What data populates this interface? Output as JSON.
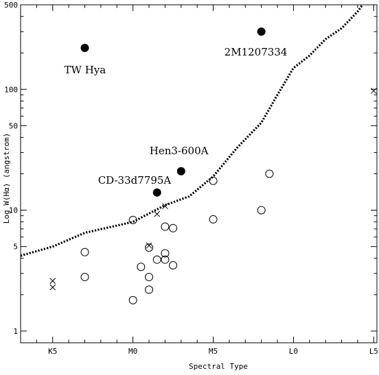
{
  "chart_data": {
    "type": "scatter",
    "title": "",
    "xlabel": "Spectral Type",
    "ylabel": "Log W(Hα) (angstrom)",
    "y_scale": "log",
    "grid": false,
    "legend": "none",
    "xlim": [
      "K3",
      "L5.2"
    ],
    "ylim": [
      0.8,
      500
    ],
    "x_ticks": [
      "K5",
      "M0",
      "M5",
      "L0",
      "L5"
    ],
    "y_ticks": [
      {
        "value": 1,
        "label": "1"
      },
      {
        "value": 5,
        "label": "5"
      },
      {
        "value": 10,
        "label": "10"
      },
      {
        "value": 50,
        "label": "50"
      },
      {
        "value": 100,
        "label": "100"
      },
      {
        "value": 500,
        "label": "500"
      }
    ],
    "series": [
      {
        "marker": "filled-circle",
        "points": [
          {
            "x": "K7",
            "y": 220
          },
          {
            "x": "M8",
            "y": 300
          },
          {
            "x": "M3",
            "y": 21
          },
          {
            "x": "M1.5",
            "y": 14
          }
        ]
      },
      {
        "marker": "open-circle",
        "points": [
          {
            "x": "K7",
            "y": 4.5
          },
          {
            "x": "K7",
            "y": 2.8
          },
          {
            "x": "M0",
            "y": 8.3
          },
          {
            "x": "M0",
            "y": 1.8
          },
          {
            "x": "M0.5",
            "y": 3.4
          },
          {
            "x": "M1",
            "y": 4.9
          },
          {
            "x": "M1",
            "y": 2.8
          },
          {
            "x": "M1",
            "y": 2.2
          },
          {
            "x": "M1.5",
            "y": 3.9
          },
          {
            "x": "M2",
            "y": 7.3
          },
          {
            "x": "M2",
            "y": 4.4
          },
          {
            "x": "M2",
            "y": 3.9
          },
          {
            "x": "M2.5",
            "y": 7.1
          },
          {
            "x": "M2.5",
            "y": 3.5
          },
          {
            "x": "M5",
            "y": 17.5
          },
          {
            "x": "M5",
            "y": 8.4
          },
          {
            "x": "M8",
            "y": 10
          },
          {
            "x": "M8.5",
            "y": 20
          }
        ]
      },
      {
        "marker": "cross",
        "points": [
          {
            "x": "K5",
            "y": 2.6
          },
          {
            "x": "K5",
            "y": 2.3
          },
          {
            "x": "M1",
            "y": 5.1
          },
          {
            "x": "M1.5",
            "y": 9.3
          },
          {
            "x": "M2",
            "y": 10.8
          },
          {
            "x": "L5",
            "y": 97
          }
        ]
      }
    ],
    "threshold_curve": {
      "style": "dotted",
      "points": [
        {
          "x": "K3",
          "y": 4.2
        },
        {
          "x": "K5",
          "y": 5.0
        },
        {
          "x": "K7",
          "y": 6.5
        },
        {
          "x": "M0",
          "y": 8.0
        },
        {
          "x": "M2",
          "y": 11.0
        },
        {
          "x": "M3.5",
          "y": 13.0
        },
        {
          "x": "M5",
          "y": 19.0
        },
        {
          "x": "M6.5",
          "y": 33.0
        },
        {
          "x": "M8",
          "y": 53.0
        },
        {
          "x": "M9",
          "y": 90.0
        },
        {
          "x": "L0",
          "y": 150.0
        },
        {
          "x": "L1",
          "y": 190.0
        },
        {
          "x": "L2",
          "y": 260.0
        },
        {
          "x": "L3",
          "y": 320.0
        },
        {
          "x": "L4",
          "y": 440.0
        },
        {
          "x": "L4.3",
          "y": 500.0
        }
      ]
    },
    "annotations": [
      {
        "text": "TW Hya",
        "x": "K7",
        "y": 220
      },
      {
        "text": "2M1207334",
        "x": "M8",
        "y": 300
      },
      {
        "text": "Hen3-600A",
        "x": "M3",
        "y": 21
      },
      {
        "text": "CD-33d7795A",
        "x": "M1.5",
        "y": 14
      }
    ]
  }
}
